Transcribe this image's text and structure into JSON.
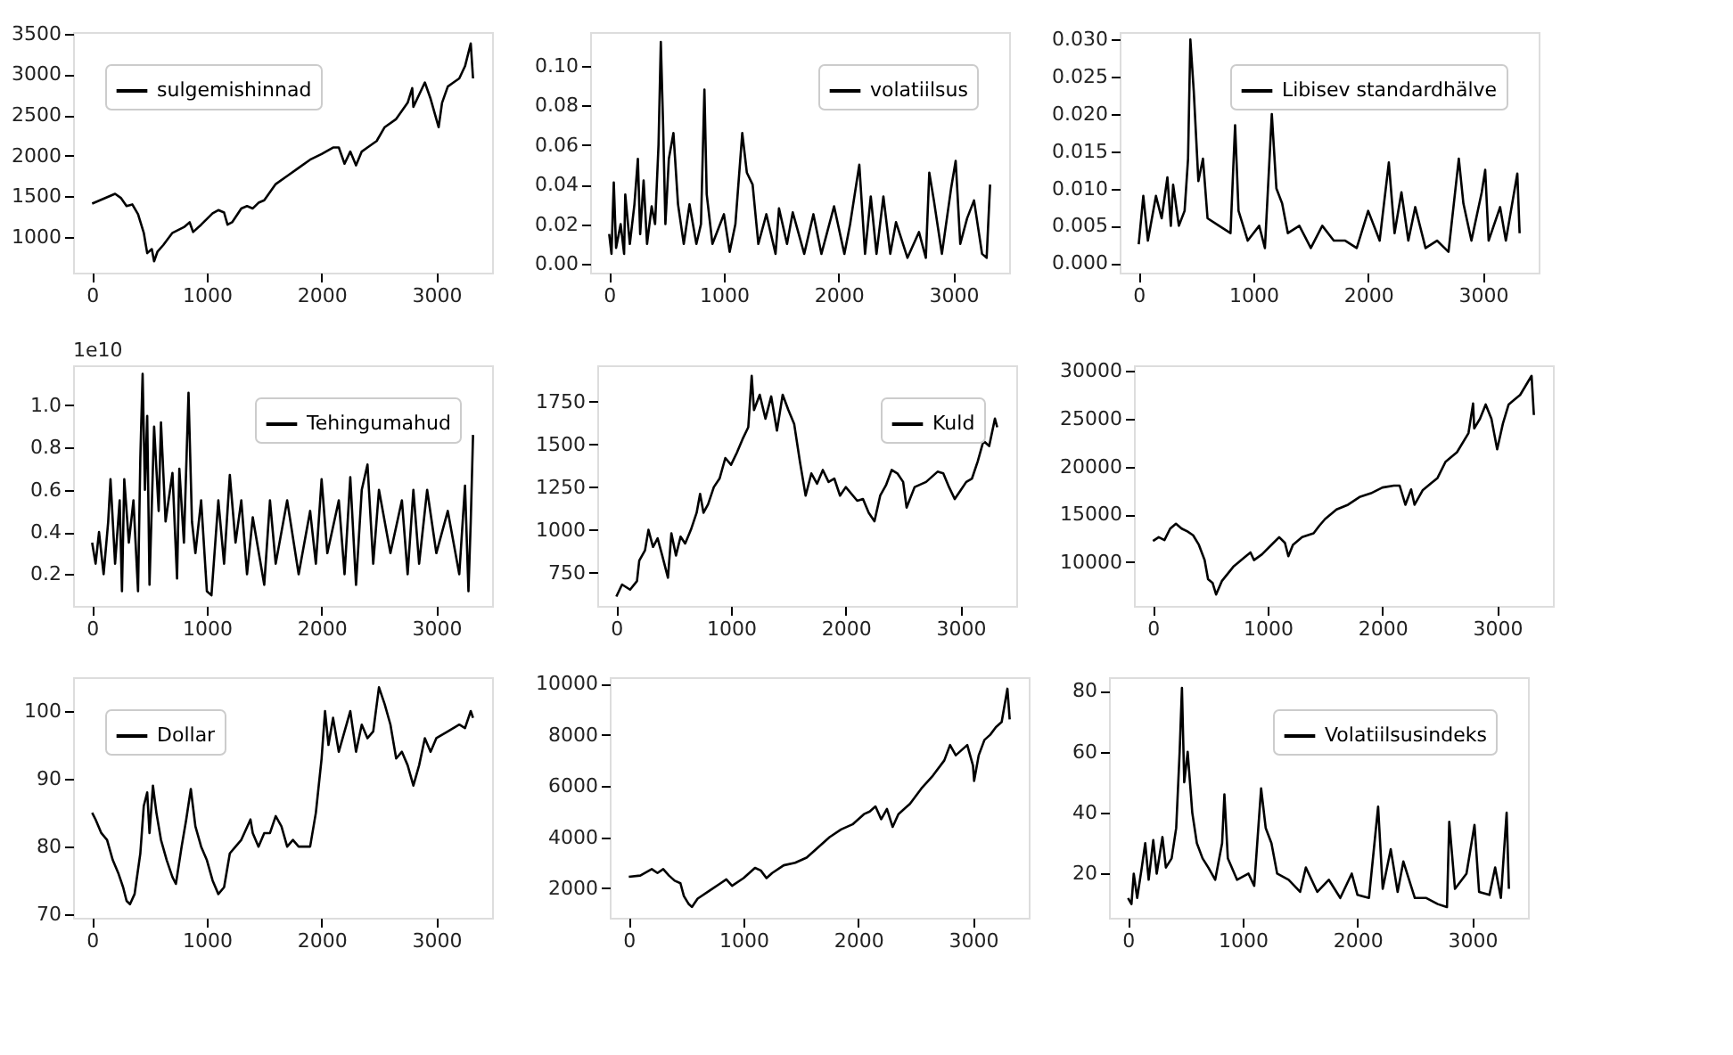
{
  "chart_data": [
    {
      "type": "line",
      "legend": "top left",
      "xlim": [
        -166,
        3486
      ],
      "xticks": [
        0,
        1000,
        2000,
        3000
      ],
      "ylim": [
        560,
        3520
      ],
      "yticks": [
        1000,
        1500,
        2000,
        2500,
        3000,
        3500
      ],
      "x": [
        0,
        50,
        100,
        150,
        200,
        250,
        300,
        350,
        400,
        450,
        480,
        520,
        540,
        570,
        620,
        700,
        800,
        850,
        880,
        950,
        1050,
        1100,
        1150,
        1180,
        1220,
        1300,
        1350,
        1400,
        1450,
        1500,
        1600,
        1700,
        1800,
        1900,
        2000,
        2100,
        2150,
        2200,
        2250,
        2300,
        2350,
        2400,
        2480,
        2550,
        2650,
        2750,
        2790,
        2800,
        2850,
        2900,
        2950,
        3000,
        3020,
        3050,
        3100,
        3150,
        3200,
        3250,
        3300,
        3320
      ],
      "series": [
        {
          "name": "sulgemishinnad",
          "color": "#000000",
          "values": [
            1410,
            1440,
            1470,
            1500,
            1530,
            1480,
            1380,
            1400,
            1280,
            1050,
            800,
            850,
            700,
            820,
            900,
            1050,
            1120,
            1180,
            1060,
            1150,
            1290,
            1330,
            1300,
            1150,
            1180,
            1350,
            1380,
            1350,
            1420,
            1450,
            1650,
            1750,
            1850,
            1950,
            2020,
            2100,
            2100,
            1900,
            2050,
            1880,
            2050,
            2100,
            2180,
            2350,
            2450,
            2650,
            2830,
            2600,
            2750,
            2900,
            2700,
            2450,
            2350,
            2650,
            2850,
            2900,
            2950,
            3100,
            3380,
            2950
          ]
        }
      ]
    },
    {
      "type": "line",
      "legend": "top right",
      "xlim": [
        -166,
        3486
      ],
      "xticks": [
        0,
        1000,
        2000,
        3000
      ],
      "ylim": [
        -0.0045,
        0.117
      ],
      "yticks": [
        {
          "value": 0,
          "label": "0.00"
        },
        {
          "value": 0.02,
          "label": "0.02"
        },
        {
          "value": 0.04,
          "label": "0.04"
        },
        {
          "value": 0.06,
          "label": "0.06"
        },
        {
          "value": 0.08,
          "label": "0.08"
        },
        {
          "value": 0.1,
          "label": "0.10"
        }
      ],
      "x": [
        0,
        20,
        40,
        60,
        100,
        130,
        140,
        180,
        220,
        250,
        270,
        300,
        330,
        370,
        400,
        430,
        450,
        470,
        490,
        520,
        560,
        600,
        650,
        700,
        760,
        800,
        830,
        850,
        900,
        1000,
        1050,
        1100,
        1160,
        1200,
        1250,
        1300,
        1370,
        1450,
        1480,
        1550,
        1600,
        1700,
        1780,
        1850,
        1960,
        2050,
        2100,
        2180,
        2230,
        2280,
        2330,
        2390,
        2450,
        2500,
        2600,
        2700,
        2760,
        2790,
        2830,
        2900,
        2980,
        3020,
        3060,
        3120,
        3180,
        3250,
        3290,
        3320
      ],
      "series": [
        {
          "name": "volatiilsus",
          "color": "#000000",
          "values": [
            0.015,
            0.005,
            0.041,
            0.008,
            0.02,
            0.005,
            0.035,
            0.01,
            0.03,
            0.053,
            0.015,
            0.042,
            0.01,
            0.029,
            0.02,
            0.06,
            0.112,
            0.07,
            0.02,
            0.053,
            0.066,
            0.03,
            0.01,
            0.03,
            0.01,
            0.02,
            0.088,
            0.035,
            0.01,
            0.025,
            0.006,
            0.02,
            0.066,
            0.046,
            0.04,
            0.01,
            0.025,
            0.005,
            0.028,
            0.01,
            0.026,
            0.005,
            0.025,
            0.005,
            0.029,
            0.005,
            0.02,
            0.05,
            0.005,
            0.034,
            0.005,
            0.034,
            0.005,
            0.021,
            0.003,
            0.016,
            0.003,
            0.046,
            0.032,
            0.005,
            0.038,
            0.052,
            0.01,
            0.023,
            0.032,
            0.005,
            0.003,
            0.04
          ]
        }
      ]
    },
    {
      "type": "line",
      "legend": "top right",
      "xlim": [
        -166,
        3486
      ],
      "xticks": [
        0,
        1000,
        2000,
        3000
      ],
      "ylim": [
        -0.0013,
        0.031
      ],
      "yticks": [
        {
          "value": 0,
          "label": "0.000"
        },
        {
          "value": 0.005,
          "label": "0.005"
        },
        {
          "value": 0.01,
          "label": "0.010"
        },
        {
          "value": 0.015,
          "label": "0.015"
        },
        {
          "value": 0.02,
          "label": "0.020"
        },
        {
          "value": 0.025,
          "label": "0.025"
        },
        {
          "value": 0.03,
          "label": "0.030"
        }
      ],
      "x": [
        0,
        40,
        80,
        150,
        200,
        250,
        280,
        300,
        350,
        400,
        430,
        450,
        480,
        520,
        560,
        600,
        700,
        800,
        840,
        870,
        950,
        1050,
        1100,
        1160,
        1200,
        1250,
        1300,
        1400,
        1500,
        1600,
        1700,
        1800,
        1900,
        2000,
        2100,
        2180,
        2230,
        2290,
        2350,
        2410,
        2500,
        2600,
        2700,
        2790,
        2830,
        2900,
        2990,
        3020,
        3050,
        3150,
        3200,
        3300,
        3320
      ],
      "series": [
        {
          "name": "Libisev standardhälve",
          "color": "#000000",
          "values": [
            0.0025,
            0.009,
            0.003,
            0.009,
            0.006,
            0.0115,
            0.005,
            0.0105,
            0.005,
            0.007,
            0.014,
            0.03,
            0.023,
            0.011,
            0.014,
            0.006,
            0.005,
            0.004,
            0.0185,
            0.007,
            0.003,
            0.005,
            0.002,
            0.02,
            0.01,
            0.008,
            0.004,
            0.005,
            0.002,
            0.005,
            0.003,
            0.003,
            0.002,
            0.007,
            0.003,
            0.0135,
            0.004,
            0.0095,
            0.003,
            0.0075,
            0.002,
            0.003,
            0.0015,
            0.014,
            0.008,
            0.003,
            0.0095,
            0.0125,
            0.003,
            0.0075,
            0.003,
            0.012,
            0.004
          ]
        }
      ]
    },
    {
      "type": "line",
      "legend": "top right",
      "annotations": [
        "1e10"
      ],
      "xlim": [
        -166,
        3486
      ],
      "xticks": [
        0,
        1000,
        2000,
        3000
      ],
      "ylim": [
        0.05,
        1.19
      ],
      "yticks": [
        0.2,
        0.4,
        0.6,
        0.8,
        {
          "value": 1,
          "label": "1.0"
        }
      ],
      "x": [
        0,
        30,
        60,
        100,
        140,
        160,
        200,
        240,
        260,
        280,
        320,
        360,
        400,
        420,
        440,
        460,
        480,
        500,
        540,
        580,
        600,
        640,
        700,
        740,
        760,
        800,
        840,
        870,
        900,
        950,
        1000,
        1040,
        1100,
        1150,
        1200,
        1250,
        1300,
        1350,
        1400,
        1500,
        1550,
        1600,
        1700,
        1800,
        1900,
        1950,
        2000,
        2050,
        2150,
        2200,
        2250,
        2300,
        2350,
        2400,
        2450,
        2500,
        2600,
        2700,
        2750,
        2800,
        2850,
        2920,
        3000,
        3100,
        3200,
        3250,
        3280,
        3300,
        3320
      ],
      "series": [
        {
          "name": "Tehingumahud",
          "color": "#000000",
          "values": [
            0.35,
            0.25,
            0.4,
            0.2,
            0.45,
            0.65,
            0.25,
            0.55,
            0.12,
            0.65,
            0.35,
            0.55,
            0.12,
            0.75,
            1.15,
            0.6,
            0.95,
            0.15,
            0.9,
            0.5,
            0.92,
            0.45,
            0.68,
            0.18,
            0.7,
            0.35,
            1.06,
            0.45,
            0.3,
            0.55,
            0.12,
            0.1,
            0.55,
            0.25,
            0.67,
            0.35,
            0.55,
            0.2,
            0.47,
            0.15,
            0.55,
            0.25,
            0.55,
            0.2,
            0.5,
            0.25,
            0.65,
            0.3,
            0.55,
            0.2,
            0.66,
            0.15,
            0.6,
            0.72,
            0.25,
            0.6,
            0.3,
            0.55,
            0.2,
            0.6,
            0.25,
            0.6,
            0.3,
            0.5,
            0.2,
            0.62,
            0.12,
            0.45,
            0.86
          ]
        }
      ]
    },
    {
      "type": "line",
      "legend": "top right",
      "xlim": [
        -166,
        3486
      ],
      "xticks": [
        0,
        1000,
        2000,
        3000
      ],
      "ylim": [
        555,
        1962
      ],
      "yticks": [
        750,
        1000,
        1250,
        1500,
        1750
      ],
      "x": [
        0,
        50,
        120,
        180,
        200,
        250,
        280,
        320,
        360,
        400,
        450,
        480,
        520,
        560,
        600,
        650,
        700,
        730,
        760,
        800,
        850,
        900,
        950,
        1000,
        1050,
        1100,
        1150,
        1180,
        1200,
        1250,
        1300,
        1350,
        1400,
        1450,
        1500,
        1550,
        1600,
        1650,
        1700,
        1750,
        1800,
        1850,
        1900,
        1950,
        2000,
        2100,
        2150,
        2200,
        2250,
        2300,
        2350,
        2400,
        2450,
        2500,
        2530,
        2600,
        2700,
        2800,
        2850,
        2900,
        2950,
        3000,
        3050,
        3100,
        3150,
        3200,
        3250,
        3300,
        3320
      ],
      "series": [
        {
          "name": "Kuld",
          "color": "#000000",
          "values": [
            610,
            680,
            650,
            700,
            820,
            880,
            1000,
            900,
            950,
            850,
            720,
            980,
            850,
            960,
            920,
            1000,
            1100,
            1210,
            1100,
            1150,
            1250,
            1300,
            1420,
            1380,
            1450,
            1530,
            1600,
            1900,
            1700,
            1790,
            1650,
            1780,
            1580,
            1790,
            1700,
            1620,
            1400,
            1200,
            1330,
            1270,
            1350,
            1280,
            1300,
            1200,
            1250,
            1170,
            1180,
            1100,
            1050,
            1200,
            1260,
            1350,
            1330,
            1280,
            1130,
            1250,
            1280,
            1340,
            1330,
            1250,
            1180,
            1230,
            1280,
            1300,
            1400,
            1520,
            1490,
            1650,
            1600
          ]
        }
      ]
    },
    {
      "type": "line",
      "legend": false,
      "xlim": [
        -166,
        3486
      ],
      "xticks": [
        0,
        1000,
        2000,
        3000
      ],
      "ylim": [
        5400,
        30600
      ],
      "yticks": [
        10000,
        15000,
        20000,
        25000,
        30000
      ],
      "x": [
        0,
        50,
        100,
        150,
        200,
        250,
        300,
        350,
        400,
        450,
        480,
        520,
        550,
        600,
        700,
        800,
        850,
        880,
        950,
        1050,
        1100,
        1150,
        1180,
        1220,
        1300,
        1400,
        1450,
        1500,
        1600,
        1700,
        1800,
        1900,
        2000,
        2100,
        2150,
        2200,
        2250,
        2280,
        2350,
        2420,
        2480,
        2550,
        2650,
        2750,
        2790,
        2800,
        2850,
        2900,
        2950,
        3000,
        3050,
        3100,
        3150,
        3200,
        3250,
        3300,
        3320
      ],
      "series": [
        {
          "color": "#000000",
          "values": [
            12200,
            12600,
            12300,
            13500,
            14000,
            13500,
            13200,
            12800,
            11800,
            10200,
            8200,
            7800,
            6600,
            8000,
            9500,
            10500,
            11000,
            10200,
            10800,
            12000,
            12600,
            12000,
            10600,
            11800,
            12600,
            13000,
            13800,
            14500,
            15500,
            16000,
            16800,
            17200,
            17800,
            18000,
            18000,
            16000,
            17600,
            16000,
            17500,
            18200,
            18800,
            20500,
            21500,
            23500,
            26600,
            24000,
            25000,
            26500,
            25000,
            21800,
            24500,
            26500,
            27000,
            27500,
            28500,
            29500,
            25400
          ]
        }
      ]
    },
    {
      "type": "line",
      "legend": "top left",
      "xlim": [
        -166,
        3486
      ],
      "xticks": [
        0,
        1000,
        2000,
        3000
      ],
      "ylim": [
        69.5,
        105
      ],
      "yticks": [
        70,
        80,
        90,
        100
      ],
      "x": [
        0,
        30,
        80,
        130,
        180,
        230,
        270,
        300,
        330,
        370,
        420,
        450,
        480,
        500,
        530,
        560,
        600,
        650,
        700,
        730,
        780,
        820,
        860,
        900,
        950,
        1000,
        1050,
        1100,
        1150,
        1200,
        1250,
        1300,
        1380,
        1400,
        1450,
        1500,
        1550,
        1600,
        1650,
        1700,
        1750,
        1800,
        1900,
        1950,
        2000,
        2030,
        2060,
        2100,
        2150,
        2200,
        2250,
        2300,
        2350,
        2400,
        2450,
        2500,
        2550,
        2600,
        2650,
        2700,
        2750,
        2800,
        2850,
        2900,
        2950,
        3000,
        3100,
        3200,
        3250,
        3300,
        3320
      ],
      "series": [
        {
          "name": "Dollar",
          "color": "#000000",
          "values": [
            85,
            84,
            82,
            81,
            78,
            76,
            74,
            72,
            71.5,
            73,
            79,
            86,
            88,
            82,
            89,
            85,
            81,
            78,
            75.5,
            74.5,
            80,
            84,
            88.5,
            83,
            80,
            78,
            75,
            73,
            74,
            79,
            80,
            81,
            84,
            82,
            80,
            82,
            82,
            84.5,
            83,
            80,
            81,
            80,
            80,
            85,
            93,
            100,
            95,
            99,
            94,
            97,
            100,
            94,
            98,
            96,
            97,
            103.5,
            101,
            98,
            93,
            94,
            92,
            89,
            92,
            96,
            94,
            96,
            97,
            98,
            97.5,
            100,
            99
          ]
        }
      ]
    },
    {
      "type": "line",
      "legend": false,
      "xlim": [
        -166,
        3486
      ],
      "xticks": [
        0,
        1000,
        2000,
        3000
      ],
      "ylim": [
        850,
        10250
      ],
      "yticks": [
        2000,
        4000,
        6000,
        8000,
        10000
      ],
      "x": [
        0,
        100,
        200,
        250,
        300,
        350,
        400,
        450,
        480,
        520,
        550,
        600,
        700,
        800,
        850,
        900,
        1000,
        1100,
        1150,
        1200,
        1250,
        1350,
        1450,
        1550,
        1650,
        1750,
        1850,
        1950,
        2050,
        2100,
        2150,
        2200,
        2250,
        2300,
        2350,
        2450,
        2550,
        2650,
        2750,
        2800,
        2850,
        2900,
        2950,
        3000,
        3010,
        3050,
        3100,
        3150,
        3200,
        3250,
        3300,
        3320
      ],
      "series": [
        {
          "color": "#000000",
          "values": [
            2450,
            2500,
            2750,
            2600,
            2750,
            2500,
            2300,
            2200,
            1700,
            1400,
            1270,
            1600,
            1900,
            2200,
            2350,
            2100,
            2400,
            2800,
            2700,
            2400,
            2600,
            2900,
            3000,
            3200,
            3600,
            4000,
            4300,
            4500,
            4900,
            5000,
            5200,
            4700,
            5100,
            4400,
            4900,
            5300,
            5900,
            6400,
            7000,
            7600,
            7200,
            7400,
            7600,
            6800,
            6200,
            7200,
            7800,
            8000,
            8300,
            8500,
            9800,
            8600
          ]
        }
      ]
    },
    {
      "type": "line",
      "legend": "top right",
      "xlim": [
        -166,
        3486
      ],
      "xticks": [
        0,
        1000,
        2000,
        3000
      ],
      "ylim": [
        5.5,
        84.5
      ],
      "yticks": [
        20,
        40,
        60,
        80
      ],
      "x": [
        0,
        30,
        50,
        80,
        120,
        150,
        180,
        220,
        250,
        300,
        330,
        380,
        420,
        450,
        470,
        490,
        520,
        560,
        600,
        650,
        700,
        760,
        820,
        840,
        870,
        950,
        1050,
        1100,
        1160,
        1200,
        1250,
        1300,
        1400,
        1500,
        1550,
        1650,
        1750,
        1850,
        1950,
        2000,
        2100,
        2180,
        2220,
        2290,
        2350,
        2400,
        2500,
        2600,
        2700,
        2780,
        2800,
        2850,
        2950,
        3020,
        3060,
        3150,
        3200,
        3250,
        3300,
        3320
      ],
      "series": [
        {
          "name": "Volatiilsusindeks",
          "color": "#000000",
          "values": [
            12,
            10,
            20,
            12,
            22,
            30,
            18,
            31,
            20,
            32,
            22,
            25,
            35,
            60,
            81,
            50,
            60,
            40,
            30,
            25,
            22,
            18,
            30,
            46,
            25,
            18,
            20,
            16,
            48,
            35,
            30,
            20,
            18,
            14,
            22,
            14,
            18,
            12,
            20,
            13,
            12,
            42,
            15,
            28,
            14,
            24,
            12,
            12,
            10,
            9,
            37,
            15,
            20,
            36,
            14,
            13,
            22,
            12,
            40,
            15
          ]
        }
      ]
    }
  ]
}
